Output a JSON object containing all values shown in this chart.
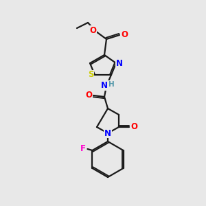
{
  "bg_color": "#e8e8e8",
  "bond_color": "#1a1a1a",
  "bond_width": 1.6,
  "atom_colors": {
    "O": "#ff0000",
    "N": "#0000ff",
    "S": "#cccc00",
    "F": "#ff00cc",
    "H": "#5599aa",
    "C": "#1a1a1a"
  },
  "font_size_atom": 8.5,
  "fig_width": 3.0,
  "fig_height": 3.0,
  "dpi": 100
}
